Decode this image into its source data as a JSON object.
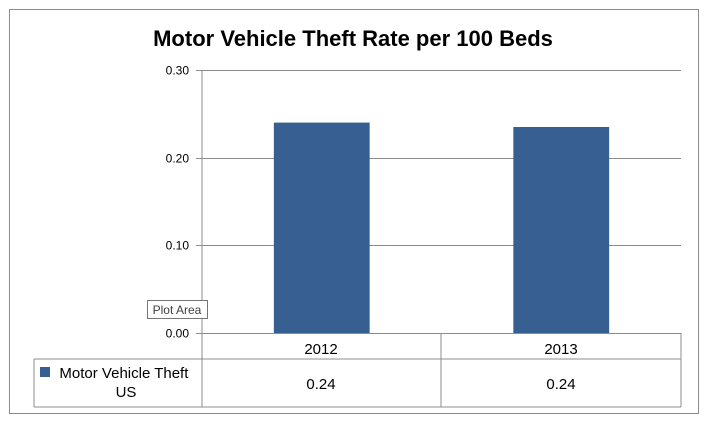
{
  "chart_data": {
    "type": "bar",
    "title": "Motor Vehicle Theft Rate per 100 Beds",
    "categories": [
      "2012",
      "2013"
    ],
    "series": [
      {
        "name": "Motor Vehicle Theft US",
        "name_lines": [
          "Motor Vehicle Theft",
          "US"
        ],
        "values": [
          0.24,
          0.235
        ],
        "value_labels": [
          "0.24",
          "0.24"
        ]
      }
    ],
    "y_ticks": [
      "0.00",
      "0.10",
      "0.20",
      "0.30"
    ],
    "y_tick_values": [
      0,
      0.1,
      0.2,
      0.3
    ],
    "ylim": [
      0,
      0.3
    ],
    "grid": true,
    "data_table": true,
    "tooltip": "Plot Area",
    "colors": {
      "bar": "#375f92",
      "grid": "#8c8c8c",
      "frame": "#8c8c8c"
    }
  }
}
